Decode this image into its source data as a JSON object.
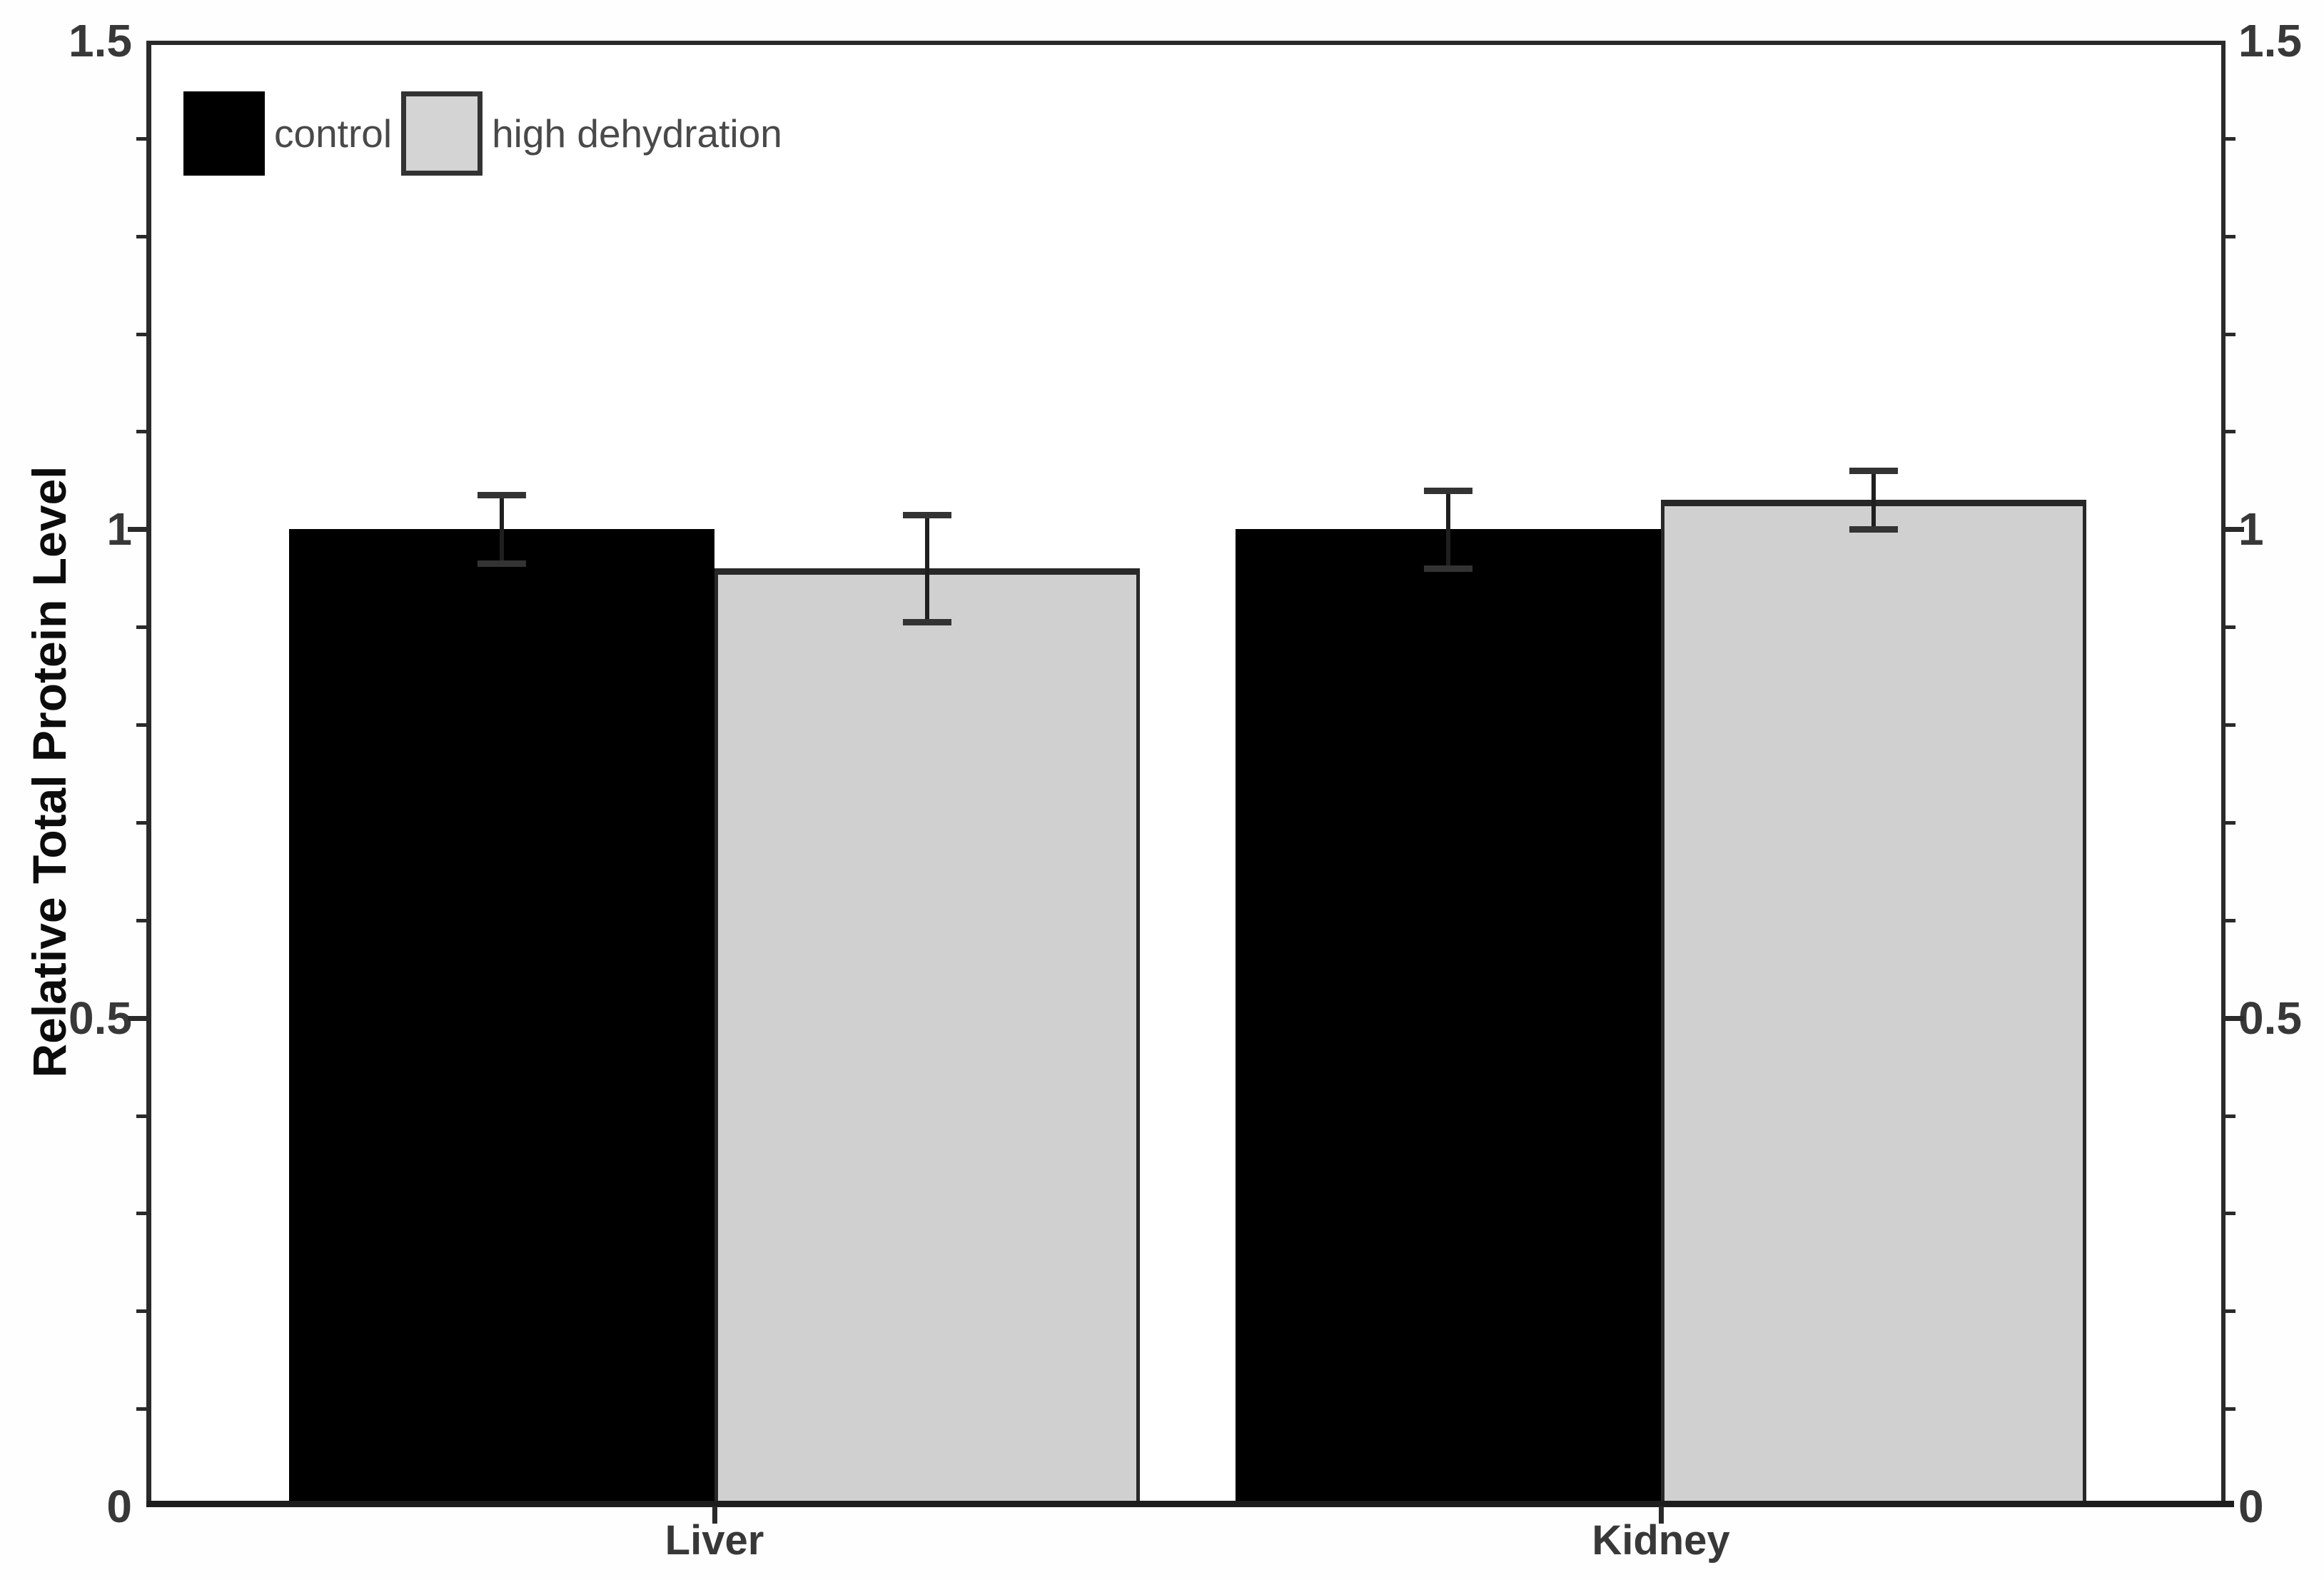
{
  "chart_data": {
    "type": "bar",
    "title": "",
    "xlabel": "",
    "ylabel": "Relative Total Protein Level",
    "categories": [
      "Liver",
      "Kidney"
    ],
    "series": [
      {
        "name": "control",
        "fill": "#000000",
        "values": [
          1.0,
          1.0
        ],
        "errors": [
          0.035,
          0.04
        ]
      },
      {
        "name": "high dehydration",
        "fill": "#d0d0d0",
        "values": [
          0.96,
          1.03
        ],
        "errors": [
          0.055,
          0.03
        ]
      }
    ],
    "ylim": [
      0,
      1.5
    ],
    "ytick_major": [
      0,
      0.5,
      1,
      1.5
    ],
    "ytick_labels": [
      "0",
      "0.5",
      "1",
      "1.5"
    ],
    "ytick_minor_step": 0.1,
    "y_axis_sides": [
      "left",
      "right"
    ],
    "legend_position": "top-left inside plot",
    "grid": false,
    "error_bars": "symmetric with caps"
  },
  "colors": {
    "bar_control": "#000000",
    "bar_high_dehydration": "#d0d0d0",
    "bar_border": "#282828",
    "axis": "#2a2a2a",
    "tick_text": "#383838",
    "legend_text": "#494949"
  }
}
